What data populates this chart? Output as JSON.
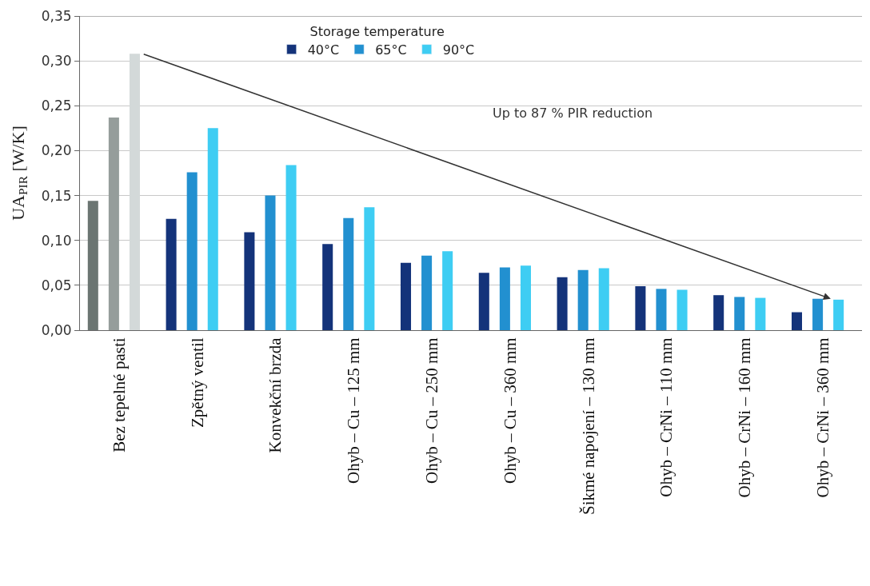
{
  "chart_data": {
    "type": "bar",
    "ylabel": "UA$_{PIR}$ [W/K]",
    "legend_title": "Storage temperature",
    "legend": "top",
    "grid": "y",
    "categories": [
      "Bez tepelné pasti",
      "Zpětný ventil",
      "Konvekční brzda",
      "Ohyb – Cu – 125 mm",
      "Ohyb – Cu – 250 mm",
      "Ohyb – Cu – 360 mm",
      "Šikmé napojení – 130 mm",
      "Ohyb – CrNi – 110 mm",
      "Ohyb – CrNi – 160 mm",
      "Ohyb – CrNi – 360 mm"
    ],
    "series": [
      {
        "name": "40°C",
        "color": "#14337a",
        "colors": [
          "#6b7572",
          "#14337a",
          "#14337a",
          "#14337a",
          "#14337a",
          "#14337a",
          "#14337a",
          "#14337a",
          "#14337a",
          "#14337a"
        ],
        "values": [
          0.144,
          0.124,
          0.109,
          0.096,
          0.075,
          0.064,
          0.059,
          0.049,
          0.039,
          0.02
        ]
      },
      {
        "name": "65°C",
        "color": "#2290d0",
        "colors": [
          "#959d9b",
          "#2290d0",
          "#2290d0",
          "#2290d0",
          "#2290d0",
          "#2290d0",
          "#2290d0",
          "#2290d0",
          "#2290d0",
          "#2290d0"
        ],
        "values": [
          0.237,
          0.176,
          0.15,
          0.125,
          0.083,
          0.07,
          0.067,
          0.046,
          0.037,
          0.035
        ]
      },
      {
        "name": "90°C",
        "color": "#3ecdf3",
        "colors": [
          "#d3d9d9",
          "#3ecdf3",
          "#3ecdf3",
          "#3ecdf3",
          "#3ecdf3",
          "#3ecdf3",
          "#3ecdf3",
          "#3ecdf3",
          "#3ecdf3",
          "#3ecdf3"
        ],
        "values": [
          0.308,
          0.225,
          0.184,
          0.137,
          0.088,
          0.072,
          0.069,
          0.045,
          0.036,
          0.034
        ]
      }
    ],
    "ylim": [
      0,
      0.35
    ],
    "yticks": [
      {
        "value": 0,
        "label": "0,00"
      },
      {
        "value": 0.05,
        "label": "0,05"
      },
      {
        "value": 0.1,
        "label": "0,10"
      },
      {
        "value": 0.15,
        "label": "0,15"
      },
      {
        "value": 0.2,
        "label": "0,20"
      },
      {
        "value": 0.25,
        "label": "0,25"
      },
      {
        "value": 0.3,
        "label": "0,30"
      },
      {
        "value": 0.35,
        "label": "0,35"
      }
    ],
    "annotations": [
      "Up to 87 % PIR reduction"
    ]
  }
}
